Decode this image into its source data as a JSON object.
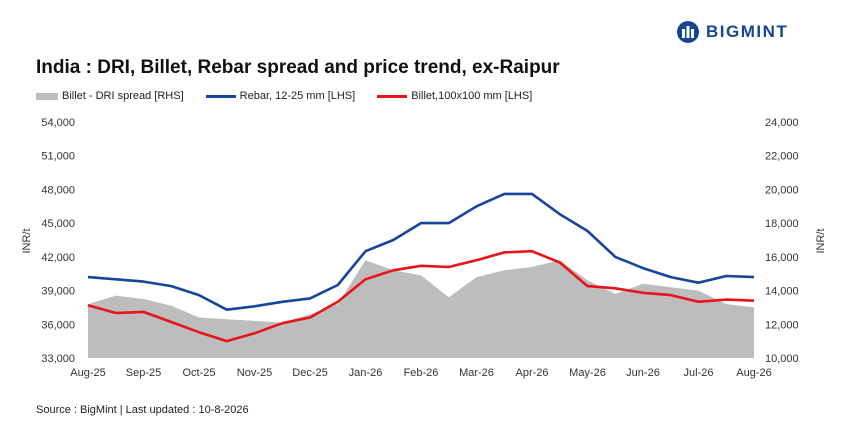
{
  "header": {
    "title": "India : DRI, Billet, Rebar spread and price trend, ex-Raipur",
    "logo_text": "BIGMINT",
    "logo_icon": "bigmint-logo-icon"
  },
  "footer": {
    "source": "Source : BigMint | Last updated : 10-8-2026"
  },
  "colors": {
    "spread": "#bdbdbd",
    "rebar": "#16469b",
    "billet": "#e8141b",
    "brand": "#16468c"
  },
  "chart_data": {
    "type": "line",
    "title": "India : DRI, Billet, Rebar spread and price trend, ex-Raipur",
    "ylabel_left": "INR/t",
    "ylabel_right": "INR/t",
    "ylim_left": [
      33000,
      54000
    ],
    "ylim_right": [
      10000,
      24000
    ],
    "yticks_left": [
      "54,000",
      "51,000",
      "48,000",
      "45,000",
      "42,000",
      "39,000",
      "36,000",
      "33,000"
    ],
    "yticks_right": [
      "24,000",
      "22,000",
      "20,000",
      "18,000",
      "16,000",
      "14,000",
      "12,000",
      "10,000"
    ],
    "x_tick_labels": [
      "Aug-25",
      "Sep-25",
      "Oct-25",
      "Nov-25",
      "Dec-25",
      "Jan-26",
      "Feb-26",
      "Mar-26",
      "Apr-26",
      "May-26",
      "Jun-26",
      "Jul-26",
      "Aug-26"
    ],
    "x": [
      0,
      0.5,
      1,
      1.5,
      2,
      2.5,
      3,
      3.5,
      4,
      4.5,
      5,
      5.5,
      6,
      6.5,
      7,
      7.5,
      8,
      8.5,
      9,
      9.5,
      10,
      10.5,
      11,
      11.5,
      12
    ],
    "legend_position": "top",
    "grid": false,
    "series": [
      {
        "name": "Billet - DRI spread  [RHS]",
        "type": "area",
        "axis": "right",
        "values": [
          13200,
          13700,
          13500,
          13100,
          12400,
          12300,
          12200,
          12100,
          12600,
          13200,
          15800,
          15200,
          14900,
          13600,
          14800,
          15200,
          15400,
          15800,
          14600,
          13800,
          14400,
          14200,
          14000,
          13200,
          13000
        ]
      },
      {
        "name": "Rebar, 12-25 mm [LHS]",
        "type": "line",
        "axis": "left",
        "values": [
          40200,
          40000,
          39800,
          39400,
          38600,
          37300,
          37600,
          38000,
          38300,
          39500,
          42500,
          43500,
          45000,
          45000,
          46500,
          47600,
          47600,
          45800,
          44300,
          42000,
          41000,
          40200,
          39700,
          40300,
          40200
        ]
      },
      {
        "name": "Billet,100x100 mm [LHS]",
        "type": "line",
        "axis": "left",
        "values": [
          37700,
          37000,
          37100,
          36200,
          35300,
          34500,
          35200,
          36100,
          36600,
          38000,
          40000,
          40800,
          41200,
          41100,
          41700,
          42400,
          42500,
          41500,
          39400,
          39200,
          38800,
          38600,
          38000,
          38200,
          38100
        ]
      }
    ]
  }
}
